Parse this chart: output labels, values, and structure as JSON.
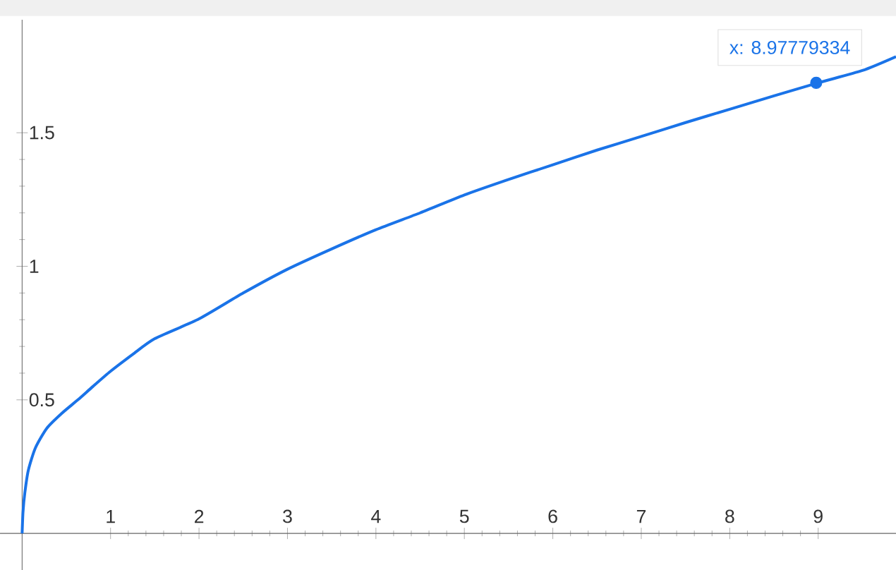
{
  "chart_data": {
    "type": "line",
    "x": [
      0,
      0.01,
      0.03,
      0.07,
      0.15,
      0.28,
      0.45,
      0.63,
      0.8,
      1,
      1.25,
      1.5,
      2,
      2.5,
      3,
      3.5,
      4,
      4.5,
      5,
      5.5,
      6,
      6.5,
      7,
      7.5,
      8,
      8.5,
      9,
      9.5,
      9.88
    ],
    "xlim": [
      -0.25,
      9.88
    ],
    "ylim": [
      -0.137,
      1.923
    ],
    "xticks": [
      1,
      2,
      3,
      4,
      5,
      6,
      7,
      8,
      9
    ],
    "yticks": [
      0.5,
      1,
      1.5
    ],
    "series": [
      {
        "color": "#1a73e8",
        "line_style": "solid",
        "marker": "none",
        "values": [
          0,
          0.08,
          0.15,
          0.236,
          0.32,
          0.394,
          0.45,
          0.5,
          0.55,
          0.607,
          0.67,
          0.729,
          0.803,
          0.9,
          0.989,
          1.065,
          1.137,
          1.2,
          1.267,
          1.325,
          1.38,
          1.435,
          1.486,
          1.538,
          1.588,
          1.638,
          1.687,
          1.733,
          1.785
        ]
      },
      {
        "type": "scatter",
        "color": "#1a73e8",
        "marker": "circle",
        "x": [
          8.97779334
        ],
        "values": [
          1.687
        ]
      }
    ],
    "annotations": [
      {
        "text": "x: 8.97779334",
        "x": 8.97779334,
        "y": 1.687
      }
    ]
  }
}
